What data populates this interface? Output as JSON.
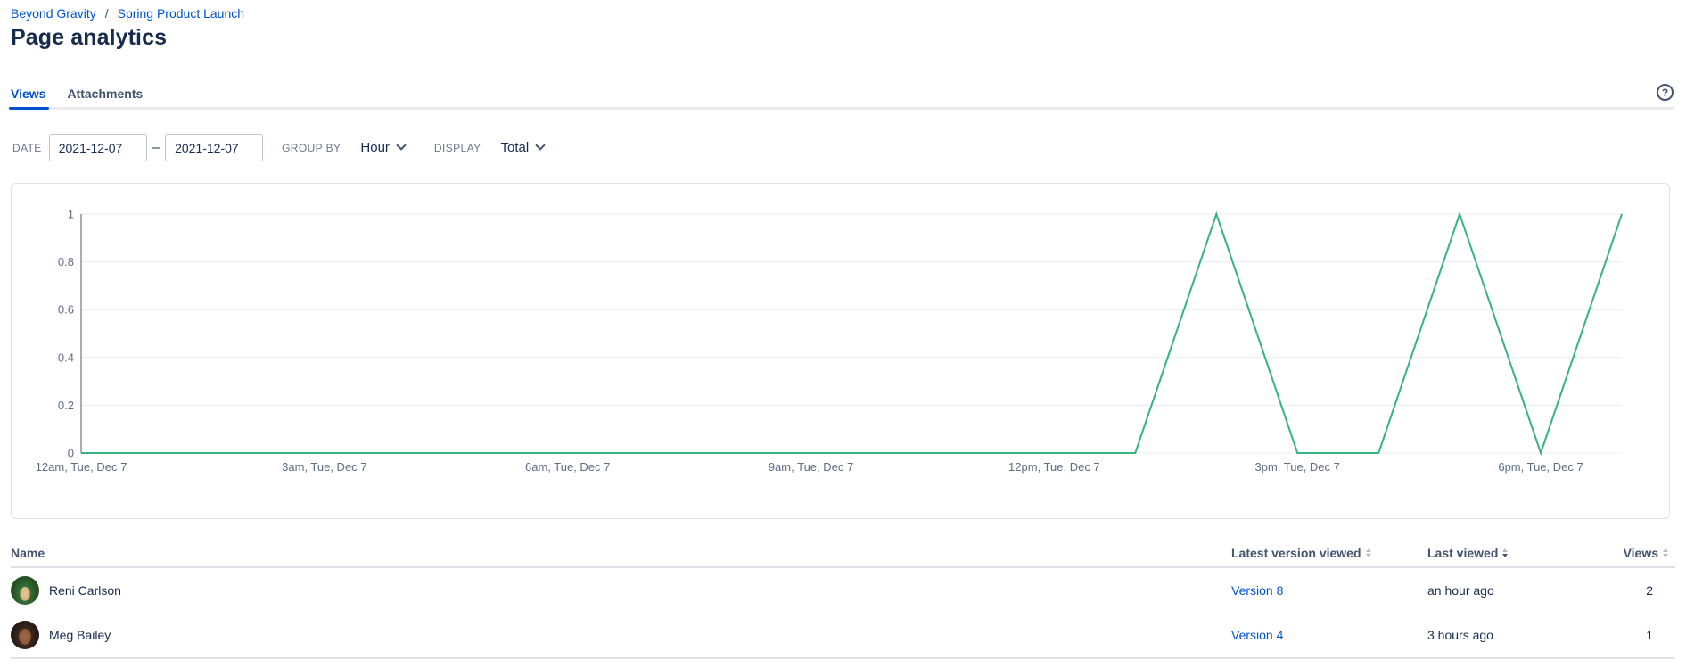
{
  "breadcrumb": {
    "item1": "Beyond Gravity",
    "separator": "/",
    "item2": "Spring Product Launch"
  },
  "page": {
    "title": "Page analytics"
  },
  "tabs": {
    "views": "Views",
    "attachments": "Attachments"
  },
  "help": {
    "glyph": "?"
  },
  "filters": {
    "date_label": "DATE",
    "date_from": "2021-12-07",
    "date_to": "2021-12-07",
    "range_separator": "–",
    "group_by_label": "GROUP BY",
    "group_by_value": "Hour",
    "display_label": "DISPLAY",
    "display_value": "Total"
  },
  "chart_data": {
    "type": "line",
    "title": "",
    "xlabel": "",
    "ylabel": "",
    "ylim": [
      0,
      1
    ],
    "grid": true,
    "legend": false,
    "x_unit": "hour of Tue, Dec 7 (12am through 7pm)",
    "series": [
      {
        "name": "Total views",
        "color": "#36B37E",
        "values": [
          0,
          0,
          0,
          0,
          0,
          0,
          0,
          0,
          0,
          0,
          0,
          0,
          0,
          0,
          1,
          0,
          0,
          1,
          0,
          1
        ]
      }
    ],
    "x_ticks": [
      {
        "hour": 0,
        "label": "12am, Tue, Dec 7"
      },
      {
        "hour": 3,
        "label": "3am, Tue, Dec 7"
      },
      {
        "hour": 6,
        "label": "6am, Tue, Dec 7"
      },
      {
        "hour": 9,
        "label": "9am, Tue, Dec 7"
      },
      {
        "hour": 12,
        "label": "12pm, Tue, Dec 7"
      },
      {
        "hour": 15,
        "label": "3pm, Tue, Dec 7"
      },
      {
        "hour": 18,
        "label": "6pm, Tue, Dec 7"
      }
    ],
    "y_ticks": [
      {
        "value": 0,
        "label": "0"
      },
      {
        "value": 0.2,
        "label": "0.2"
      },
      {
        "value": 0.4,
        "label": "0.4"
      },
      {
        "value": 0.6,
        "label": "0.6"
      },
      {
        "value": 0.8,
        "label": "0.8"
      },
      {
        "value": 1,
        "label": "1"
      }
    ]
  },
  "table": {
    "columns": [
      {
        "label": "Name",
        "sortable": false,
        "sort": "none"
      },
      {
        "label": "Latest version viewed",
        "sortable": true,
        "sort": "none"
      },
      {
        "label": "Last viewed",
        "sortable": true,
        "sort": "desc"
      },
      {
        "label": "Views",
        "sortable": true,
        "sort": "none"
      }
    ],
    "rows": [
      {
        "name": "Reni Carlson",
        "latest_version": "Version 8",
        "last_viewed": "an hour ago",
        "views": "2"
      },
      {
        "name": "Meg Bailey",
        "latest_version": "Version 4",
        "last_viewed": "3 hours ago",
        "views": "1"
      }
    ]
  },
  "colors": {
    "link_blue": "#0052CC",
    "heading_text": "#172B4D",
    "secondary_text": "#42526E",
    "muted_label": "#6B778C",
    "line_green": "#36B37E",
    "gridline": "#EBECF0",
    "axis": "#8993A4",
    "card_border": "#DFE1E6"
  }
}
